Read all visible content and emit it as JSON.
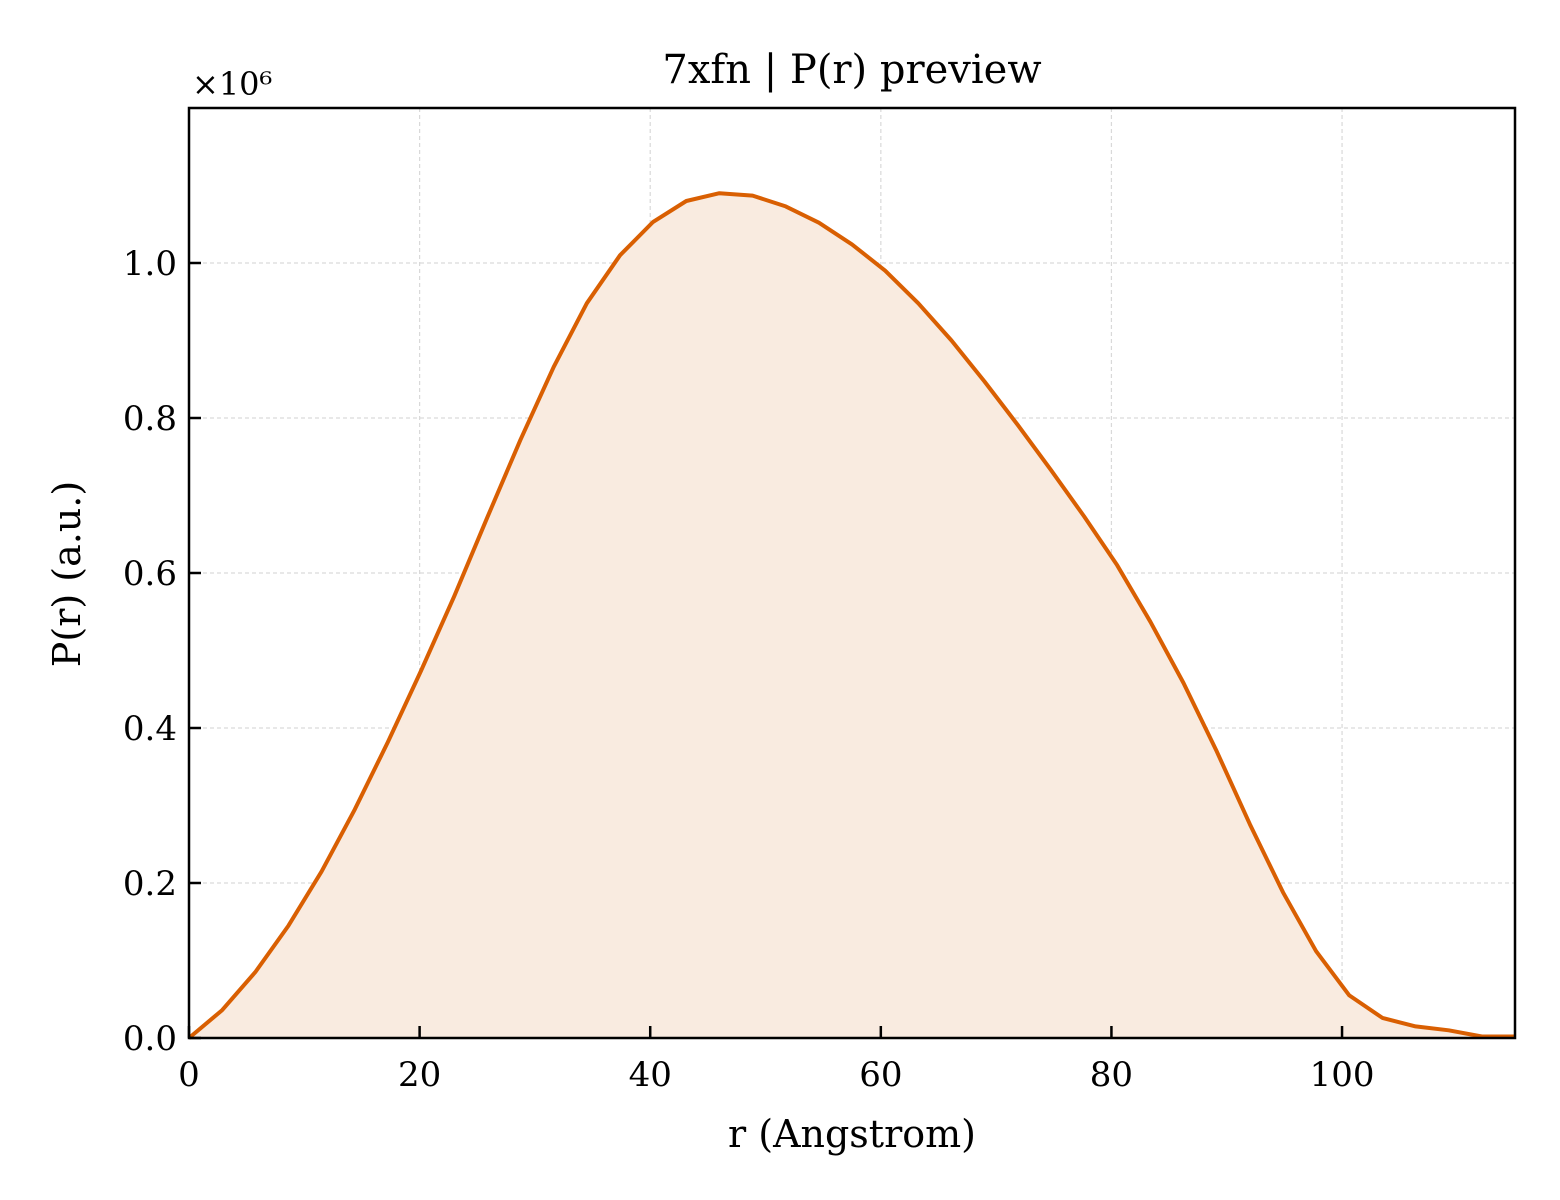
{
  "chart_data": {
    "type": "area",
    "title": "7xfn | P(r) preview",
    "xlabel": "r (Angstrom)",
    "ylabel": "P(r) (a.u.)",
    "y_scale_label": "×10⁶",
    "y_multiplier": 1000000,
    "xlim": [
      0,
      115
    ],
    "ylim": [
      0,
      1.2
    ],
    "x_ticks": [
      0,
      20,
      40,
      60,
      80,
      100
    ],
    "x_tick_labels": [
      "0",
      "20",
      "40",
      "60",
      "80",
      "100"
    ],
    "y_ticks": [
      0.0,
      0.2,
      0.4,
      0.6,
      0.8,
      1.0
    ],
    "y_tick_labels": [
      "0.0",
      "0.2",
      "0.4",
      "0.6",
      "0.8",
      "1.0"
    ],
    "grid": true,
    "colors": {
      "line": "#d95f02",
      "fill": "#f9ebe0",
      "grid": "#d9d9d9"
    },
    "series": [
      {
        "x": [
          0,
          2.88,
          5.75,
          8.63,
          11.5,
          14.38,
          17.25,
          20.13,
          23.0,
          25.88,
          28.75,
          31.63,
          34.5,
          37.38,
          40.25,
          43.13,
          46.0,
          48.88,
          51.75,
          54.63,
          57.5,
          60.38,
          63.25,
          66.13,
          69.0,
          71.88,
          74.75,
          77.63,
          80.5,
          83.38,
          86.25,
          89.13,
          92.0,
          94.88,
          97.75,
          100.63,
          103.5,
          106.38,
          109.25,
          112.13,
          115.0
        ],
        "y": [
          0.0,
          0.036,
          0.085,
          0.145,
          0.215,
          0.295,
          0.382,
          0.474,
          0.57,
          0.672,
          0.772,
          0.866,
          0.948,
          1.01,
          1.053,
          1.08,
          1.09,
          1.087,
          1.073,
          1.052,
          1.024,
          0.99,
          0.948,
          0.9,
          0.847,
          0.791,
          0.733,
          0.673,
          0.61,
          0.537,
          0.458,
          0.37,
          0.276,
          0.188,
          0.112,
          0.055,
          0.026,
          0.015,
          0.01,
          0.002,
          0.002
        ]
      }
    ]
  }
}
